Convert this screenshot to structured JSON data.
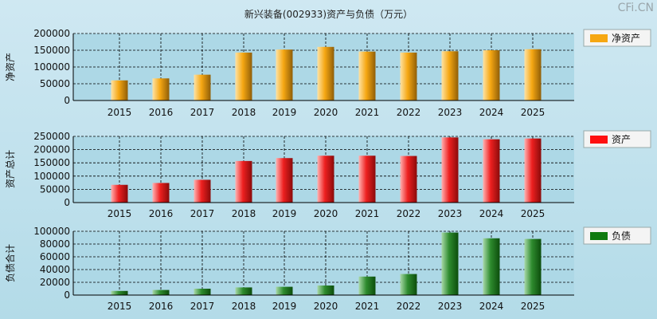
{
  "title": "新兴装备(002933)资产与负债（万元）",
  "watermark": "CFi.CN",
  "colors": {
    "net": "#f6a712",
    "asset": "#ff1010",
    "debt": "#0f7a0f",
    "grid": "#000000",
    "plot_bg": "#add8e6"
  },
  "chart_data": [
    {
      "type": "bar",
      "key": "net",
      "ylabel": "净资产",
      "legend": "净资产",
      "categories": [
        "2015",
        "2016",
        "2017",
        "2018",
        "2019",
        "2020",
        "2021",
        "2022",
        "2023",
        "2024",
        "2025"
      ],
      "values": [
        60000,
        66000,
        77000,
        143000,
        152000,
        160000,
        146000,
        143000,
        147000,
        150000,
        153000
      ],
      "yticks": [
        0,
        50000,
        100000,
        150000,
        200000
      ],
      "ylim": [
        0,
        200000
      ]
    },
    {
      "type": "bar",
      "key": "asset",
      "ylabel": "资产总计",
      "legend": "资产",
      "categories": [
        "2015",
        "2016",
        "2017",
        "2018",
        "2019",
        "2020",
        "2021",
        "2022",
        "2023",
        "2024",
        "2025"
      ],
      "values": [
        67000,
        74000,
        86000,
        157000,
        168000,
        177000,
        177000,
        176000,
        246000,
        239000,
        242000
      ],
      "yticks": [
        0,
        50000,
        100000,
        150000,
        200000,
        250000
      ],
      "ylim": [
        0,
        250000
      ]
    },
    {
      "type": "bar",
      "key": "debt",
      "ylabel": "负债合计",
      "legend": "负债",
      "categories": [
        "2015",
        "2016",
        "2017",
        "2018",
        "2019",
        "2020",
        "2021",
        "2022",
        "2023",
        "2024",
        "2025"
      ],
      "values": [
        6500,
        8000,
        10000,
        12000,
        13000,
        15000,
        29000,
        33000,
        98000,
        89000,
        88000
      ],
      "yticks": [
        0,
        20000,
        40000,
        60000,
        80000,
        100000
      ],
      "ylim": [
        0,
        100000
      ]
    }
  ]
}
